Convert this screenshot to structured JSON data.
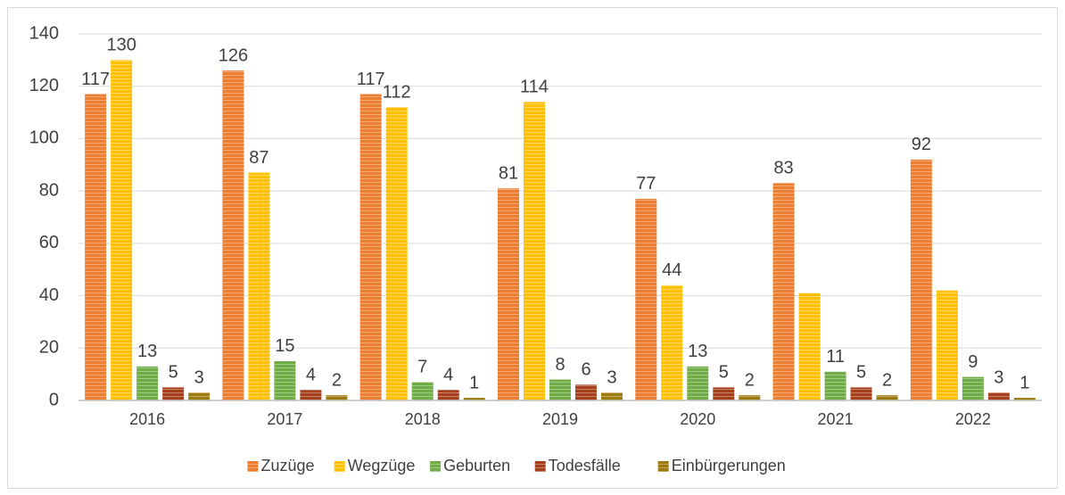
{
  "chart_data": {
    "type": "bar",
    "categories": [
      "2016",
      "2017",
      "2018",
      "2019",
      "2020",
      "2021",
      "2022"
    ],
    "series": [
      {
        "name": "Zuzüge",
        "color": "#ED7D31",
        "values": [
          117,
          126,
          117,
          81,
          77,
          83,
          92
        ]
      },
      {
        "name": "Wegzüge",
        "color": "#FFC000",
        "values": [
          130,
          87,
          112,
          114,
          44,
          41,
          42
        ],
        "value_labels": [
          "130",
          "87",
          "112",
          "114",
          "44",
          null,
          null
        ]
      },
      {
        "name": "Geburten",
        "color": "#70AD47",
        "values": [
          13,
          15,
          7,
          8,
          13,
          11,
          9
        ]
      },
      {
        "name": "Todesfälle",
        "color": "#A5401A",
        "values": [
          5,
          4,
          4,
          6,
          5,
          5,
          3
        ]
      },
      {
        "name": "Einbürgerungen",
        "color": "#9C7A0C",
        "values": [
          3,
          2,
          1,
          3,
          2,
          2,
          1
        ]
      }
    ],
    "ylim": [
      0,
      140
    ],
    "yticks": [
      0,
      20,
      40,
      60,
      80,
      100,
      120,
      140
    ],
    "grid": true,
    "legend": "bottom"
  }
}
